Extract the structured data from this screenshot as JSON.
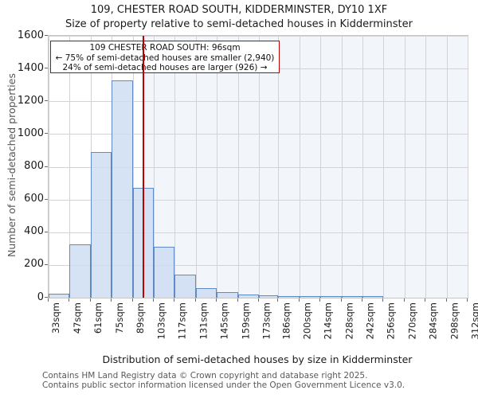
{
  "page": {
    "title_line1": "109, CHESTER ROAD SOUTH, KIDDERMINSTER, DY10 1XF",
    "title_line2": "Size of property relative to semi-detached houses in Kidderminster"
  },
  "annotation": {
    "line1": "109 CHESTER ROAD SOUTH: 96sqm",
    "line2": "← 75% of semi-detached houses are smaller (2,940)",
    "line3": "24% of semi-detached houses are larger (926) →"
  },
  "chart_data": {
    "type": "bar",
    "title": "109, CHESTER ROAD SOUTH, KIDDERMINSTER, DY10 1XF",
    "subtitle": "Size of property relative to semi-detached houses in Kidderminster",
    "xlabel": "Distribution of semi-detached houses by size in Kidderminster",
    "ylabel": "Number of semi-detached properties",
    "bin_edges_sqm": [
      33,
      47,
      61,
      75,
      89,
      103,
      117,
      131,
      145,
      159,
      173,
      186,
      200,
      214,
      228,
      242,
      256,
      270,
      284,
      298,
      312
    ],
    "bin_labels": [
      "33sqm",
      "47sqm",
      "61sqm",
      "75sqm",
      "89sqm",
      "103sqm",
      "117sqm",
      "131sqm",
      "145sqm",
      "159sqm",
      "173sqm",
      "186sqm",
      "200sqm",
      "214sqm",
      "228sqm",
      "242sqm",
      "256sqm",
      "270sqm",
      "284sqm",
      "298sqm",
      "312sqm"
    ],
    "values": [
      25,
      325,
      890,
      1330,
      670,
      310,
      140,
      60,
      35,
      20,
      15,
      10,
      5,
      10,
      5,
      5,
      0,
      0,
      0,
      0
    ],
    "ylim": [
      0,
      1600
    ],
    "yticks": [
      0,
      200,
      400,
      600,
      800,
      1000,
      1200,
      1400,
      1600
    ],
    "grid": true,
    "legend": null,
    "marker": {
      "value_sqm": 96,
      "label": "109 CHESTER ROAD SOUTH: 96sqm",
      "smaller_pct": "75%",
      "smaller_count": "2,940",
      "larger_pct": "24%",
      "larger_count": "926"
    },
    "colors": {
      "bar_fill": "#cdddf3",
      "bar_edge": "#5e8bc6",
      "marker_red": "#bf0000",
      "shade": "rgba(110,145,205,0.09)",
      "grid": "#d2d2d8"
    }
  },
  "footer": {
    "line1": "Contains HM Land Registry data © Crown copyright and database right 2025.",
    "line2": "Contains public sector information licensed under the Open Government Licence v3.0."
  }
}
